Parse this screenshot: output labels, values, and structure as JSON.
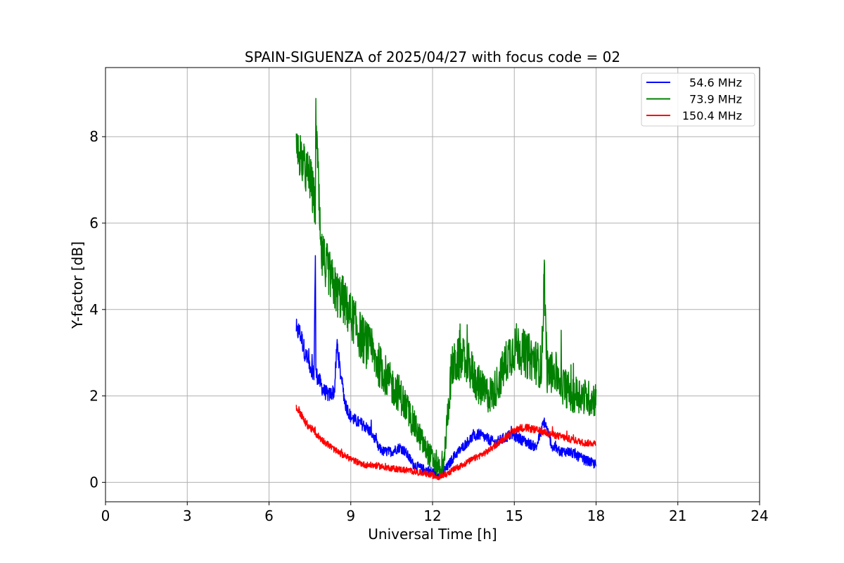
{
  "chart_data": {
    "type": "line",
    "title": "SPAIN-SIGUENZA of 2025/04/27 with focus code = 02",
    "xlabel": "Universal Time [h]",
    "ylabel": "Y-factor [dB]",
    "xlim": [
      0,
      24
    ],
    "ylim": [
      -0.45,
      9.6
    ],
    "xticks": [
      0,
      3,
      6,
      9,
      12,
      15,
      18,
      21,
      24
    ],
    "yticks": [
      0,
      2,
      4,
      6,
      8
    ],
    "grid": true,
    "legend_position": "top-right",
    "series": [
      {
        "name": "54.6 MHz",
        "color": "#0000ff",
        "noise": 0.28,
        "x": [
          7.0,
          7.1,
          7.2,
          7.35,
          7.5,
          7.65,
          7.7,
          7.72,
          7.8,
          8.0,
          8.2,
          8.4,
          8.5,
          8.6,
          8.8,
          9.0,
          9.2,
          9.5,
          9.8,
          10.0,
          10.2,
          10.5,
          10.8,
          11.0,
          11.3,
          11.6,
          11.9,
          12.1,
          12.3,
          12.5,
          12.8,
          13.1,
          13.4,
          13.7,
          14.0,
          14.3,
          14.6,
          14.9,
          15.2,
          15.5,
          15.8,
          16.1,
          16.4,
          16.7,
          17.0,
          17.3,
          17.6,
          18.0
        ],
        "y": [
          3.4,
          3.5,
          3.3,
          2.9,
          2.7,
          2.5,
          5.3,
          2.5,
          2.4,
          2.1,
          2.0,
          2.1,
          3.2,
          2.6,
          1.8,
          1.5,
          1.4,
          1.3,
          1.1,
          0.8,
          0.7,
          0.7,
          0.8,
          0.7,
          0.4,
          0.3,
          0.25,
          0.2,
          0.2,
          0.3,
          0.6,
          0.8,
          1.0,
          1.1,
          1.0,
          0.9,
          1.0,
          1.1,
          1.0,
          0.9,
          0.8,
          1.4,
          0.8,
          0.7,
          0.7,
          0.6,
          0.5,
          0.4
        ]
      },
      {
        "name": "73.9 MHz",
        "color": "#008000",
        "noise": 0.7,
        "x": [
          7.0,
          7.15,
          7.3,
          7.5,
          7.7,
          7.72,
          7.9,
          8.1,
          8.3,
          8.5,
          8.7,
          8.9,
          9.1,
          9.3,
          9.6,
          9.9,
          10.2,
          10.5,
          10.8,
          11.1,
          11.4,
          11.7,
          12.0,
          12.2,
          12.4,
          12.55,
          12.7,
          13.0,
          13.3,
          13.6,
          13.9,
          14.2,
          14.5,
          14.8,
          15.1,
          15.4,
          15.7,
          16.0,
          16.1,
          16.2,
          16.5,
          16.8,
          17.1,
          17.4,
          17.7,
          18.0
        ],
        "y": [
          7.5,
          7.6,
          7.2,
          7.0,
          6.3,
          8.5,
          5.2,
          5.0,
          4.6,
          4.3,
          4.2,
          3.9,
          3.7,
          3.4,
          3.1,
          2.8,
          2.5,
          2.2,
          2.0,
          1.6,
          1.2,
          0.8,
          0.5,
          0.35,
          0.3,
          1.5,
          2.6,
          2.8,
          2.7,
          2.3,
          2.0,
          2.0,
          2.4,
          2.9,
          3.1,
          2.9,
          2.8,
          2.6,
          4.8,
          2.5,
          2.5,
          2.2,
          2.0,
          2.0,
          1.9,
          1.9
        ]
      },
      {
        "name": "150.4 MHz",
        "color": "#ff0000",
        "noise": 0.18,
        "x": [
          7.0,
          7.1,
          7.3,
          7.6,
          7.9,
          8.2,
          8.5,
          8.8,
          9.1,
          9.5,
          9.9,
          10.3,
          10.7,
          11.1,
          11.5,
          11.9,
          12.2,
          12.5,
          12.8,
          13.1,
          13.4,
          13.7,
          14.0,
          14.3,
          14.6,
          14.9,
          15.2,
          15.5,
          15.8,
          16.1,
          16.4,
          16.7,
          17.0,
          17.3,
          17.6,
          18.0
        ],
        "y": [
          1.7,
          1.65,
          1.4,
          1.2,
          1.0,
          0.85,
          0.7,
          0.6,
          0.5,
          0.4,
          0.38,
          0.34,
          0.3,
          0.27,
          0.22,
          0.17,
          0.12,
          0.18,
          0.3,
          0.4,
          0.5,
          0.6,
          0.7,
          0.85,
          1.0,
          1.15,
          1.25,
          1.25,
          1.2,
          1.15,
          1.1,
          1.05,
          1.0,
          0.95,
          0.9,
          0.9
        ]
      }
    ]
  }
}
